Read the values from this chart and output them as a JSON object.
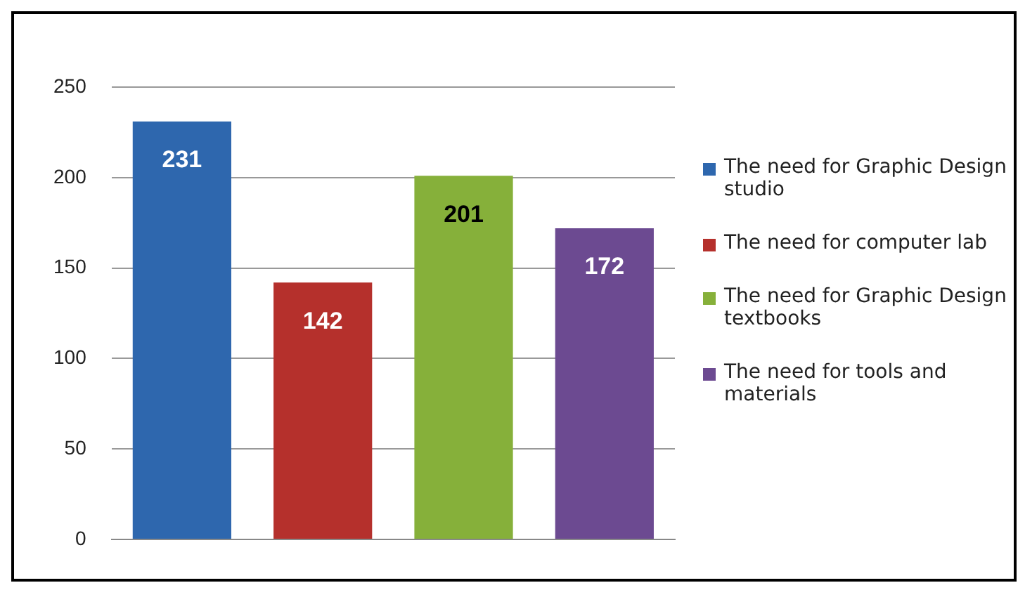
{
  "chart_data": {
    "type": "bar",
    "categories": [
      null,
      null,
      null,
      null
    ],
    "series": [
      {
        "name": "The need for Graphic Design studio",
        "color": "#2e67ae",
        "values": [
          231,
          null,
          null,
          null
        ]
      },
      {
        "name": "The need for computer lab",
        "color": "#b5302c",
        "values": [
          null,
          142,
          null,
          null
        ]
      },
      {
        "name": "The need for Graphic Design textbooks",
        "color": "#86b03a",
        "values": [
          null,
          null,
          201,
          null
        ]
      },
      {
        "name": "The need for tools and materials",
        "color": "#6c4a91",
        "values": [
          null,
          null,
          null,
          172
        ]
      }
    ],
    "ylim": [
      0,
      250
    ],
    "yticks": [
      0,
      50,
      100,
      150,
      200,
      250
    ],
    "grid": "y",
    "legend": "right",
    "data_labels": true
  }
}
